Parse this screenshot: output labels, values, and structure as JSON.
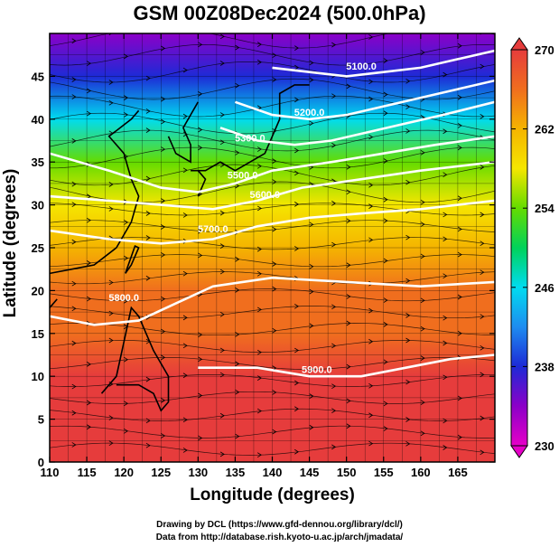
{
  "title": "GSM 00Z08Dec2024 (500.0hPa)",
  "xlabel": "Longitude (degrees)",
  "ylabel": "Latitude  (degrees)",
  "credits": [
    "Drawing by DCL (https://www.gfd-dennou.org/library/dcl/)",
    "Data from http://database.rish.kyoto-u.ac.jp/arch/jmadata/"
  ],
  "colors": {
    "colorbar": [
      "#e600c8",
      "#8c00c8",
      "#1e2ad6",
      "#1e8cf0",
      "#00dcf0",
      "#00d25a",
      "#64dc00",
      "#f5e600",
      "#f5b400",
      "#f06e1e",
      "#e63c3c"
    ]
  },
  "chart_data": {
    "type": "heatmap",
    "title": "GSM 00Z08Dec2024 (500.0hPa)",
    "xlabel": "Longitude (degrees)",
    "ylabel": "Latitude  (degrees)",
    "xlim": [
      110,
      170
    ],
    "ylim": [
      0,
      50
    ],
    "xticks": [
      110,
      115,
      120,
      125,
      130,
      135,
      140,
      145,
      150,
      155,
      160,
      165
    ],
    "yticks": [
      0,
      5,
      10,
      15,
      20,
      25,
      30,
      35,
      40,
      45
    ],
    "colorbar": {
      "range": [
        230,
        270
      ],
      "ticks": [
        230,
        238,
        246,
        254,
        262,
        270
      ]
    },
    "temperature_rows": [
      {
        "lat": 0,
        "value": 268
      },
      {
        "lat": 10,
        "value": 268
      },
      {
        "lat": 15,
        "value": 267
      },
      {
        "lat": 20,
        "value": 266
      },
      {
        "lat": 25,
        "value": 263
      },
      {
        "lat": 30,
        "value": 258
      },
      {
        "lat": 35,
        "value": 252
      },
      {
        "lat": 40,
        "value": 244
      },
      {
        "lat": 45,
        "value": 238
      },
      {
        "lat": 50,
        "value": 233
      }
    ],
    "contours": [
      {
        "label": "5100.0",
        "points": [
          [
            140,
            46
          ],
          [
            145,
            45.5
          ],
          [
            150,
            45
          ],
          [
            155,
            45.5
          ],
          [
            160,
            46
          ],
          [
            165,
            47
          ],
          [
            170,
            48
          ]
        ]
      },
      {
        "label": "5200.0",
        "points": [
          [
            135,
            42
          ],
          [
            140,
            40.5
          ],
          [
            145,
            40
          ],
          [
            150,
            40.5
          ],
          [
            155,
            41.5
          ],
          [
            160,
            42.5
          ],
          [
            165,
            43.5
          ],
          [
            170,
            44.5
          ]
        ]
      },
      {
        "label": "5300.0",
        "points": [
          [
            133,
            39
          ],
          [
            138,
            37.5
          ],
          [
            143,
            37
          ],
          [
            148,
            37.5
          ],
          [
            153,
            38.5
          ],
          [
            158,
            39.5
          ],
          [
            163,
            40.5
          ],
          [
            170,
            42
          ]
        ]
      },
      {
        "label": "5500.0",
        "points": [
          [
            110,
            36
          ],
          [
            118,
            34
          ],
          [
            125,
            32
          ],
          [
            130,
            31.5
          ],
          [
            135,
            32.5
          ],
          [
            140,
            34
          ],
          [
            148,
            35
          ],
          [
            155,
            36
          ],
          [
            162,
            37
          ],
          [
            170,
            38
          ]
        ]
      },
      {
        "label": "5600.0",
        "points": [
          [
            110,
            31
          ],
          [
            118,
            30.5
          ],
          [
            125,
            30
          ],
          [
            132,
            29.5
          ],
          [
            138,
            30.5
          ],
          [
            144,
            32
          ],
          [
            152,
            33
          ],
          [
            160,
            34
          ],
          [
            170,
            35
          ]
        ]
      },
      {
        "label": "5700.0",
        "points": [
          [
            110,
            27
          ],
          [
            118,
            26
          ],
          [
            125,
            25.5
          ],
          [
            132,
            26
          ],
          [
            138,
            27.5
          ],
          [
            145,
            28.5
          ],
          [
            152,
            29
          ],
          [
            160,
            29.5
          ],
          [
            170,
            30.5
          ]
        ]
      },
      {
        "label": "5800.0",
        "points": [
          [
            110,
            17
          ],
          [
            116,
            16
          ],
          [
            122,
            16.5
          ],
          [
            127,
            18.5
          ],
          [
            132,
            20.5
          ],
          [
            140,
            21.5
          ],
          [
            150,
            21
          ],
          [
            160,
            20.5
          ],
          [
            170,
            21
          ]
        ]
      },
      {
        "label": "5900.0",
        "points": [
          [
            130,
            11
          ],
          [
            138,
            11
          ],
          [
            145,
            10
          ],
          [
            152,
            10
          ],
          [
            158,
            11
          ],
          [
            164,
            12
          ],
          [
            170,
            12.5
          ]
        ]
      }
    ],
    "contour_labels": [
      {
        "text": "5100.0",
        "lon": 152,
        "lat": 46.2
      },
      {
        "text": "5200.0",
        "lon": 145,
        "lat": 40.8
      },
      {
        "text": "5300.0",
        "lon": 137,
        "lat": 37.8
      },
      {
        "text": "5500.0",
        "lon": 136,
        "lat": 33.5
      },
      {
        "text": "5600.0",
        "lon": 139,
        "lat": 31.2
      },
      {
        "text": "5700.0",
        "lon": 132,
        "lat": 27.2
      },
      {
        "text": "5800.0",
        "lon": 120,
        "lat": 19.2
      },
      {
        "text": "5900.0",
        "lon": 146,
        "lat": 10.8
      }
    ]
  }
}
